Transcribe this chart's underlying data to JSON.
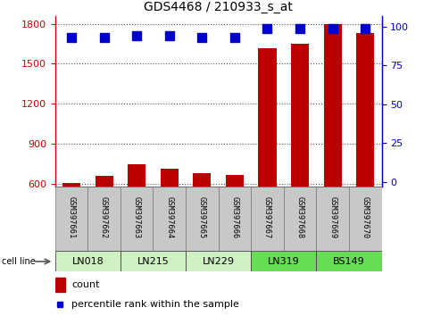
{
  "title": "GDS4468 / 210933_s_at",
  "samples": [
    "GSM397661",
    "GSM397662",
    "GSM397663",
    "GSM397664",
    "GSM397665",
    "GSM397666",
    "GSM397667",
    "GSM397668",
    "GSM397669",
    "GSM397670"
  ],
  "counts": [
    608,
    660,
    745,
    710,
    680,
    665,
    1620,
    1650,
    1800,
    1730
  ],
  "percentile_ranks": [
    93,
    93,
    94,
    94,
    93,
    93,
    99,
    99,
    99,
    99
  ],
  "cell_lines": [
    {
      "name": "LN018",
      "start": 0,
      "end": 1,
      "color": "#cff0c0"
    },
    {
      "name": "LN215",
      "start": 2,
      "end": 3,
      "color": "#cff0c0"
    },
    {
      "name": "LN229",
      "start": 4,
      "end": 5,
      "color": "#cff0c0"
    },
    {
      "name": "LN319",
      "start": 6,
      "end": 7,
      "color": "#66dd55"
    },
    {
      "name": "BS149",
      "start": 8,
      "end": 9,
      "color": "#66dd55"
    }
  ],
  "bar_color": "#bb0000",
  "dot_color": "#0000cc",
  "ylim_left": [
    580,
    1860
  ],
  "ylim_right": [
    -3,
    107
  ],
  "yticks_left": [
    600,
    900,
    1200,
    1500,
    1800
  ],
  "yticks_right": [
    0,
    25,
    50,
    75,
    100
  ],
  "left_tick_color": "#cc0000",
  "right_tick_color": "#0000cc",
  "grid_color": "#555555",
  "sample_bg_color": "#c8c8c8",
  "bar_width": 0.55,
  "dot_size": 55
}
